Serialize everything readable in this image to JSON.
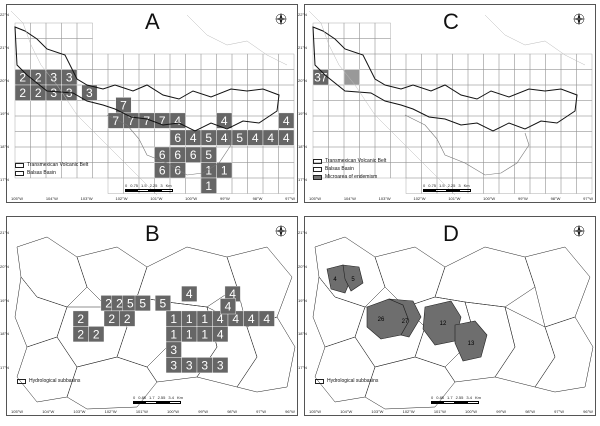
{
  "panels": {
    "A": {
      "label": "A",
      "legend": [
        "Transmexican Volcanic Belt",
        "Balsas Basin"
      ],
      "scale_ticks": [
        "0",
        "0.75",
        "1.5",
        "2.25",
        "3"
      ],
      "scale_unit": "Km",
      "cells": [
        {
          "v": "2"
        },
        {
          "v": "2"
        },
        {
          "v": "3"
        },
        {
          "v": "3"
        },
        {
          "v": "2"
        },
        {
          "v": "2"
        },
        {
          "v": "3"
        },
        {
          "v": "3"
        },
        {
          "v": "3"
        },
        {
          "v": "7"
        },
        {
          "v": "7"
        },
        {
          "v": "7"
        },
        {
          "v": "7"
        },
        {
          "v": "7"
        },
        {
          "v": "4"
        },
        {
          "v": "4"
        },
        {
          "v": "4"
        },
        {
          "v": "6"
        },
        {
          "v": "4"
        },
        {
          "v": "5"
        },
        {
          "v": "4"
        },
        {
          "v": "5"
        },
        {
          "v": "4"
        },
        {
          "v": "4"
        },
        {
          "v": "4"
        },
        {
          "v": "6"
        },
        {
          "v": "6"
        },
        {
          "v": "6"
        },
        {
          "v": "5"
        },
        {
          "v": "6"
        },
        {
          "v": "6"
        },
        {
          "v": "1"
        },
        {
          "v": "1"
        },
        {
          "v": "1"
        }
      ]
    },
    "B": {
      "label": "B",
      "legend": [
        "Hydrological subbasins"
      ],
      "scale_ticks": [
        "0",
        "0.85",
        "1.7",
        "2.55",
        "3.4"
      ],
      "scale_unit": "Km",
      "cells": [
        {
          "v": "2"
        },
        {
          "v": "2"
        },
        {
          "v": "5"
        },
        {
          "v": "5"
        },
        {
          "v": "5"
        },
        {
          "v": "4"
        },
        {
          "v": "4"
        },
        {
          "v": "2"
        },
        {
          "v": "2"
        },
        {
          "v": "2"
        },
        {
          "v": "1"
        },
        {
          "v": "1"
        },
        {
          "v": "1"
        },
        {
          "v": "4"
        },
        {
          "v": "4"
        },
        {
          "v": "4"
        },
        {
          "v": "4"
        },
        {
          "v": "4"
        },
        {
          "v": "2"
        },
        {
          "v": "2"
        },
        {
          "v": "1"
        },
        {
          "v": "1"
        },
        {
          "v": "1"
        },
        {
          "v": "4"
        },
        {
          "v": "3"
        },
        {
          "v": "3"
        },
        {
          "v": "3"
        },
        {
          "v": "3"
        },
        {
          "v": "3"
        }
      ]
    },
    "C": {
      "label": "C",
      "legend": [
        "Transmexican Volcanic Belt",
        "Balsas Basin",
        "Microarea of endemism"
      ],
      "scale_ticks": [
        "0",
        "0.75",
        "1.5",
        "2.25",
        "3"
      ],
      "scale_unit": "Km",
      "cells": [
        {
          "v": "37"
        }
      ]
    },
    "D": {
      "label": "D",
      "legend": [
        "Hydrological subbasins"
      ],
      "scale_ticks": [
        "0",
        "0.85",
        "1.7",
        "2.55",
        "3.4"
      ],
      "scale_unit": "Km",
      "areas": [
        {
          "v": "4"
        },
        {
          "v": "5"
        },
        {
          "v": "26"
        },
        {
          "v": "27"
        },
        {
          "v": "12"
        },
        {
          "v": "13"
        }
      ]
    }
  },
  "lon_labels_top": [
    "105°W",
    "104°W",
    "103°W",
    "102°W",
    "101°W",
    "100°W",
    "99°W",
    "98°W",
    "97°W"
  ],
  "lon_labels_bottom": [
    "105°W",
    "104°W",
    "103°W",
    "102°W",
    "101°W",
    "100°W",
    "99°W",
    "98°W",
    "97°W",
    "96°W"
  ],
  "lat_labels_top": [
    "22°N",
    "21°N",
    "20°N",
    "19°N",
    "18°N",
    "17°N"
  ],
  "lat_labels_bottom": [
    "21°N",
    "20°N",
    "19°N",
    "18°N",
    "17°N"
  ],
  "north_letters": {
    "n": "N",
    "s": "S",
    "e": "E",
    "w": "W"
  },
  "colors": {
    "cell": "#666666",
    "area": "#6e6e6e",
    "line": "#222222",
    "grid": "#888888"
  }
}
